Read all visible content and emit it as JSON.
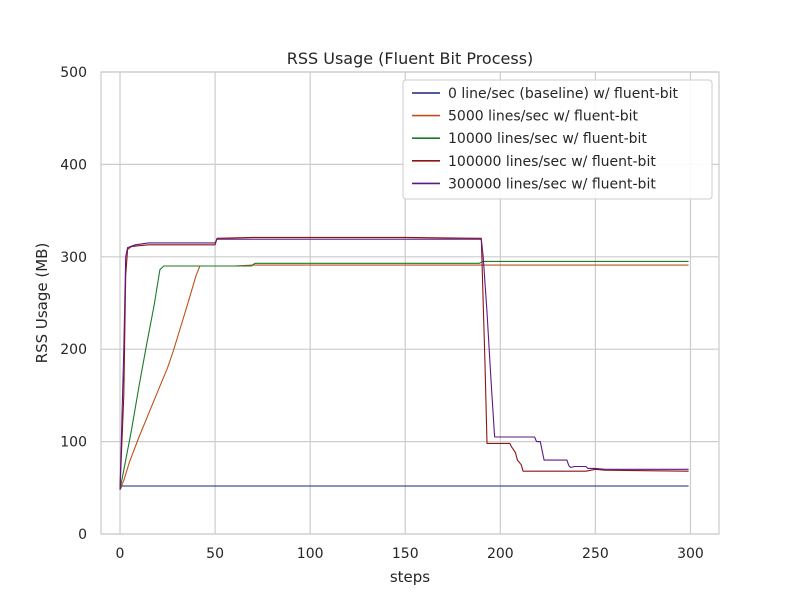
{
  "chart_data": {
    "type": "line",
    "title": "RSS Usage (Fluent Bit Process)",
    "xlabel": "steps",
    "ylabel": "RSS Usage (MB)",
    "xlim": [
      -10,
      315
    ],
    "ylim": [
      0,
      500
    ],
    "xticks": [
      0,
      50,
      100,
      150,
      200,
      250,
      300
    ],
    "yticks": [
      0,
      100,
      200,
      300,
      400,
      500
    ],
    "grid": true,
    "legend_position": "top-right",
    "series": [
      {
        "name": "0 line/sec (baseline) w/ fluent-bit",
        "color": "#1a237e",
        "points": [
          [
            0,
            48
          ],
          [
            1,
            52
          ],
          [
            50,
            52
          ],
          [
            100,
            52
          ],
          [
            150,
            52
          ],
          [
            200,
            52
          ],
          [
            250,
            52
          ],
          [
            299,
            52
          ]
        ]
      },
      {
        "name": "5000 lines/sec w/ fluent-bit",
        "color": "#c0501a",
        "points": [
          [
            0,
            48
          ],
          [
            2,
            58
          ],
          [
            5,
            78
          ],
          [
            10,
            105
          ],
          [
            15,
            130
          ],
          [
            20,
            155
          ],
          [
            25,
            180
          ],
          [
            28,
            198
          ],
          [
            32,
            225
          ],
          [
            36,
            252
          ],
          [
            40,
            280
          ],
          [
            42,
            290
          ],
          [
            50,
            290
          ],
          [
            60,
            290
          ],
          [
            70,
            291
          ],
          [
            100,
            291
          ],
          [
            150,
            291
          ],
          [
            190,
            291
          ],
          [
            200,
            291
          ],
          [
            250,
            291
          ],
          [
            299,
            291
          ]
        ]
      },
      {
        "name": "10000 lines/sec w/ fluent-bit",
        "color": "#1b7a2a",
        "points": [
          [
            0,
            48
          ],
          [
            3,
            80
          ],
          [
            6,
            112
          ],
          [
            10,
            160
          ],
          [
            14,
            205
          ],
          [
            18,
            248
          ],
          [
            21,
            286
          ],
          [
            23,
            290
          ],
          [
            30,
            290
          ],
          [
            50,
            290
          ],
          [
            69,
            290
          ],
          [
            71,
            293
          ],
          [
            100,
            293
          ],
          [
            150,
            293
          ],
          [
            189,
            293
          ],
          [
            191,
            295
          ],
          [
            200,
            295
          ],
          [
            250,
            295
          ],
          [
            299,
            295
          ]
        ]
      },
      {
        "name": "100000 lines/sec w/ fluent-bit",
        "color": "#8b1414",
        "points": [
          [
            0,
            48
          ],
          [
            2,
            150
          ],
          [
            3,
            280
          ],
          [
            4,
            308
          ],
          [
            6,
            311
          ],
          [
            10,
            312
          ],
          [
            15,
            313
          ],
          [
            30,
            313
          ],
          [
            50,
            313
          ],
          [
            51,
            320
          ],
          [
            70,
            321
          ],
          [
            100,
            321
          ],
          [
            150,
            321
          ],
          [
            188,
            320
          ],
          [
            190,
            320
          ],
          [
            191,
            250
          ],
          [
            192,
            180
          ],
          [
            193,
            98
          ],
          [
            200,
            98
          ],
          [
            205,
            98
          ],
          [
            206,
            94
          ],
          [
            208,
            88
          ],
          [
            209,
            80
          ],
          [
            211,
            75
          ],
          [
            212,
            68
          ],
          [
            230,
            68
          ],
          [
            245,
            68
          ],
          [
            250,
            70
          ],
          [
            255,
            69
          ],
          [
            299,
            68
          ]
        ]
      },
      {
        "name": "300000 lines/sec w/ fluent-bit",
        "color": "#5e1a82",
        "points": [
          [
            0,
            48
          ],
          [
            2,
            200
          ],
          [
            3,
            300
          ],
          [
            4,
            310
          ],
          [
            8,
            313
          ],
          [
            15,
            315
          ],
          [
            30,
            315
          ],
          [
            50,
            315
          ],
          [
            51,
            319
          ],
          [
            70,
            319
          ],
          [
            100,
            319
          ],
          [
            150,
            319
          ],
          [
            188,
            319
          ],
          [
            190,
            319
          ],
          [
            191,
            300
          ],
          [
            193,
            240
          ],
          [
            195,
            170
          ],
          [
            197,
            105
          ],
          [
            205,
            105
          ],
          [
            215,
            105
          ],
          [
            218,
            105
          ],
          [
            219,
            100
          ],
          [
            221,
            100
          ],
          [
            223,
            80
          ],
          [
            230,
            80
          ],
          [
            235,
            80
          ],
          [
            236,
            74
          ],
          [
            237,
            72
          ],
          [
            239,
            73
          ],
          [
            245,
            73
          ],
          [
            246,
            71
          ],
          [
            250,
            71
          ],
          [
            255,
            70
          ],
          [
            270,
            70
          ],
          [
            299,
            70
          ]
        ]
      }
    ]
  }
}
